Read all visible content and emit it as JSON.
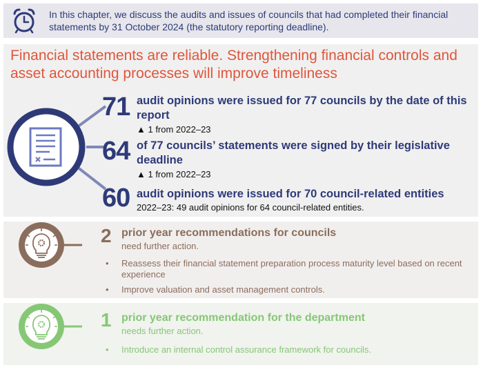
{
  "banner": {
    "icon": "alarm-clock-icon",
    "text": "In this chapter, we discuss the audits and issues of councils that had completed their financial statements by 31 October 2024 (the statutory reporting deadline)."
  },
  "main": {
    "title": "Financial statements are reliable. Strengthening financial controls and asset accounting processes will improve timeliness",
    "icon": "document-icon",
    "stats": [
      {
        "number": "71",
        "text": "audit opinions were issued for 77 councils by the date of this report",
        "sub": "▲ 1 from 2022–23"
      },
      {
        "number": "64",
        "text": "of 77 councils’ statements were signed by their legislative deadline",
        "sub": "▲ 1 from 2022–23"
      },
      {
        "number": "60",
        "text": "audit opinions were issued for 70 council-related entities",
        "sub": "2022–23: 49 audit opinions for 64 council-related entities."
      }
    ]
  },
  "recommendations": [
    {
      "number": "2",
      "title": "prior year recommendations for councils",
      "subtitle": "need further action.",
      "icon": "lightbulb-gear-icon",
      "color": "#8a6d5c",
      "bullets": [
        "Reassess their financial statement preparation process maturity level based on recent experience",
        "Improve valuation and asset management controls."
      ]
    },
    {
      "number": "1",
      "title": "prior year recommendation for the department",
      "subtitle": "needs further action.",
      "icon": "lightbulb-gear-icon",
      "color": "#86c776",
      "bullets": [
        "Introduce an internal control assurance framework for councils."
      ]
    }
  ]
}
